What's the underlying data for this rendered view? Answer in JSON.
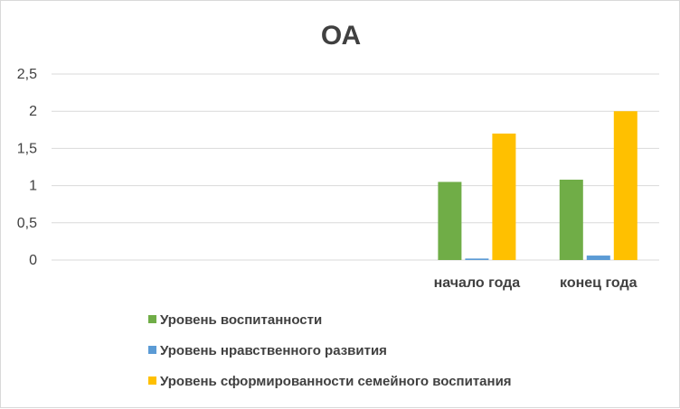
{
  "chart_data": {
    "type": "bar",
    "title": "ОА",
    "categories": [
      "",
      "",
      "",
      "начало года",
      "конец года"
    ],
    "series": [
      {
        "name": "Уровень воспитанности",
        "color": "#70ad47",
        "values": [
          null,
          null,
          null,
          1.05,
          1.08
        ]
      },
      {
        "name": "Уровень нравственного развития",
        "color": "#5b9bd5",
        "values": [
          null,
          null,
          null,
          0.02,
          0.06
        ]
      },
      {
        "name": "Уровень сформированности семейного воспитания",
        "color": "#ffc000",
        "values": [
          null,
          null,
          null,
          1.7,
          2.0
        ]
      }
    ],
    "y_ticks": [
      "0",
      "0,5",
      "1",
      "1,5",
      "2",
      "2,5"
    ],
    "ylim": [
      0,
      2.5
    ],
    "grid": true,
    "legend_position": "bottom"
  }
}
